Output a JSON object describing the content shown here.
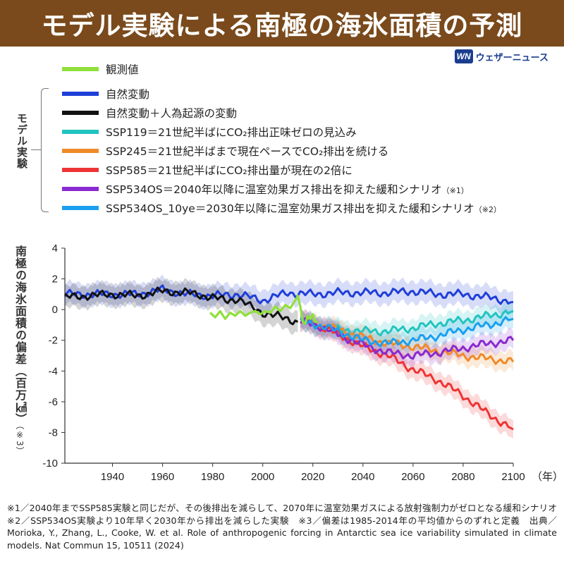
{
  "title": "モデル実験による南極の海氷面積の予測",
  "brand": {
    "logo_text": "WN",
    "name": "ウェザーニュース"
  },
  "legend": {
    "observed": {
      "label": "観測値",
      "color": "#8fe03a"
    },
    "group_label": "モデル実験",
    "items": [
      {
        "label": "自然変動",
        "color": "#1f3fd9",
        "note": ""
      },
      {
        "label": "自然変動＋人為起源の変動",
        "color": "#111111",
        "note": ""
      },
      {
        "label": "SSP119＝21世紀半ばにCO₂排出正味ゼロの見込み",
        "color": "#22c4c0",
        "note": ""
      },
      {
        "label": "SSP245＝21世紀半ばまで現在ペースでCO₂排出を続ける",
        "color": "#f08a28",
        "note": ""
      },
      {
        "label": "SSP585＝21世紀半ばにCO₂排出量が現在の2倍に",
        "color": "#ee3434",
        "note": ""
      },
      {
        "label": "SSP534OS＝2040年以降に温室効果ガス排出を抑えた緩和シナリオ",
        "color": "#8a2ad0",
        "note": "（※1）"
      },
      {
        "label": "SSP534OS_10ye＝2030年以降に温室効果ガス排出を抑えた緩和シナリオ",
        "color": "#1aa0f0",
        "note": "（※2）"
      }
    ]
  },
  "y_axis_label": "南極の海氷面積の偏差（百万㎢）",
  "y_axis_note": "（※3）",
  "x_unit": "（年）",
  "chart_data": {
    "type": "line",
    "xlim": [
      1921,
      2100
    ],
    "ylim": [
      -10,
      4
    ],
    "x_ticks": [
      1940,
      1960,
      1980,
      2000,
      2020,
      2040,
      2060,
      2080,
      2100
    ],
    "y_ticks": [
      4,
      2,
      0,
      -2,
      -4,
      -6,
      -8,
      -10
    ],
    "grid": false,
    "series": [
      {
        "name": "自然変動",
        "color": "#1f3fd9",
        "band": 0.7,
        "points": [
          [
            1921,
            1.0
          ],
          [
            1930,
            1.0
          ],
          [
            1940,
            1.0
          ],
          [
            1950,
            1.0
          ],
          [
            1960,
            1.3
          ],
          [
            1970,
            1.0
          ],
          [
            1980,
            0.9
          ],
          [
            1990,
            1.0
          ],
          [
            2000,
            0.6
          ],
          [
            2010,
            1.1
          ],
          [
            2020,
            1.0
          ],
          [
            2030,
            1.1
          ],
          [
            2040,
            1.1
          ],
          [
            2050,
            1.1
          ],
          [
            2060,
            1.2
          ],
          [
            2070,
            1.0
          ],
          [
            2080,
            1.0
          ],
          [
            2090,
            0.8
          ],
          [
            2100,
            0.5
          ]
        ]
      },
      {
        "name": "自然変動＋人為起源の変動",
        "color": "#111111",
        "band": 0.7,
        "points": [
          [
            1921,
            0.8
          ],
          [
            1930,
            0.9
          ],
          [
            1940,
            1.0
          ],
          [
            1950,
            0.9
          ],
          [
            1960,
            1.2
          ],
          [
            1970,
            1.1
          ],
          [
            1980,
            0.8
          ],
          [
            1985,
            0.6
          ],
          [
            1990,
            0.7
          ],
          [
            1995,
            0.2
          ],
          [
            2000,
            -0.2
          ],
          [
            2005,
            -0.4
          ],
          [
            2010,
            -0.6
          ],
          [
            2014,
            -0.8
          ]
        ]
      },
      {
        "name": "SSP119",
        "color": "#22c4c0",
        "band": 0.6,
        "points": [
          [
            2015,
            -0.8
          ],
          [
            2020,
            -0.9
          ],
          [
            2025,
            -1.2
          ],
          [
            2030,
            -1.3
          ],
          [
            2040,
            -1.4
          ],
          [
            2050,
            -1.4
          ],
          [
            2060,
            -1.2
          ],
          [
            2070,
            -0.9
          ],
          [
            2080,
            -0.7
          ],
          [
            2090,
            -0.4
          ],
          [
            2100,
            -0.1
          ]
        ]
      },
      {
        "name": "SSP245",
        "color": "#f08a28",
        "band": 0.6,
        "points": [
          [
            2015,
            -0.8
          ],
          [
            2020,
            -0.9
          ],
          [
            2030,
            -1.3
          ],
          [
            2040,
            -1.8
          ],
          [
            2050,
            -2.2
          ],
          [
            2060,
            -2.4
          ],
          [
            2070,
            -2.7
          ],
          [
            2080,
            -3.0
          ],
          [
            2090,
            -3.2
          ],
          [
            2100,
            -3.4
          ]
        ]
      },
      {
        "name": "SSP585",
        "color": "#ee3434",
        "band": 0.6,
        "points": [
          [
            2015,
            -0.8
          ],
          [
            2020,
            -0.9
          ],
          [
            2030,
            -1.6
          ],
          [
            2040,
            -2.4
          ],
          [
            2050,
            -3.0
          ],
          [
            2060,
            -3.9
          ],
          [
            2070,
            -4.6
          ],
          [
            2080,
            -5.6
          ],
          [
            2090,
            -6.8
          ],
          [
            2100,
            -7.8
          ]
        ]
      },
      {
        "name": "SSP534OS",
        "color": "#8a2ad0",
        "band": 0.6,
        "points": [
          [
            2015,
            -0.8
          ],
          [
            2020,
            -0.9
          ],
          [
            2030,
            -1.6
          ],
          [
            2040,
            -2.3
          ],
          [
            2050,
            -2.8
          ],
          [
            2060,
            -3.0
          ],
          [
            2070,
            -2.8
          ],
          [
            2080,
            -2.5
          ],
          [
            2090,
            -2.2
          ],
          [
            2100,
            -2.0
          ]
        ]
      },
      {
        "name": "SSP534OS_10ye",
        "color": "#1aa0f0",
        "band": 0.6,
        "points": [
          [
            2015,
            -0.8
          ],
          [
            2020,
            -0.9
          ],
          [
            2030,
            -1.4
          ],
          [
            2040,
            -2.0
          ],
          [
            2050,
            -2.2
          ],
          [
            2060,
            -2.0
          ],
          [
            2070,
            -1.7
          ],
          [
            2080,
            -1.3
          ],
          [
            2090,
            -1.0
          ],
          [
            2100,
            -0.6
          ]
        ]
      },
      {
        "name": "観測値",
        "color": "#8fe03a",
        "band": 0,
        "points": [
          [
            1979,
            -0.2
          ],
          [
            1981,
            -0.5
          ],
          [
            1983,
            -0.1
          ],
          [
            1985,
            -0.6
          ],
          [
            1987,
            -0.2
          ],
          [
            1989,
            -0.4
          ],
          [
            1991,
            -0.1
          ],
          [
            1993,
            -0.4
          ],
          [
            1995,
            -0.2
          ],
          [
            1997,
            -0.1
          ],
          [
            1999,
            -0.3
          ],
          [
            2001,
            -0.1
          ],
          [
            2003,
            -0.2
          ],
          [
            2005,
            0.2
          ],
          [
            2007,
            -0.1
          ],
          [
            2009,
            0.3
          ],
          [
            2011,
            0.1
          ],
          [
            2013,
            0.6
          ],
          [
            2014,
            0.9
          ],
          [
            2015,
            0.2
          ],
          [
            2016,
            -0.8
          ],
          [
            2017,
            -0.9
          ],
          [
            2018,
            -0.4
          ],
          [
            2019,
            -0.6
          ],
          [
            2020,
            -0.3
          ],
          [
            2021,
            -0.8
          ],
          [
            2022,
            -0.8
          ]
        ]
      }
    ]
  },
  "footnote": "※1／2040年までSSP585実験と同じだが、その後排出を減らして、2070年に温室効果ガスによる放射強制力がゼロとなる緩和シナリオ　※2／SSP534OS実験より10年早く2030年から排出を減らした実験　※3／偏差は1985-2014年の平均値からのずれと定義　出典／Morioka, Y., Zhang, L., Cooke, W. et al. Role of anthropogenic forcing in Antarctic sea ice variability simulated in climate models. Nat Commun 15, 10511 (2024)"
}
